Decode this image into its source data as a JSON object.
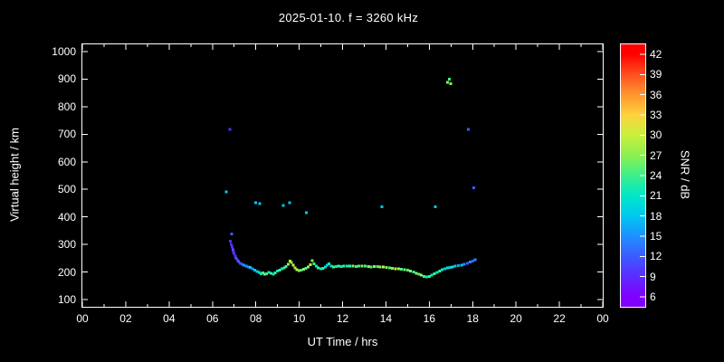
{
  "chart_data": {
    "type": "scatter",
    "title": "2025-01-10. f = 3260 kHz",
    "xlabel": "UT Time / hrs",
    "ylabel": "Virtual height / km",
    "background_color": "#000000",
    "axis_color": "#ffffff",
    "xlim": [
      0,
      24
    ],
    "ylim": [
      100,
      1000
    ],
    "grid": false,
    "x_ticks": [
      {
        "v": 0,
        "label": "00"
      },
      {
        "v": 2,
        "label": "02"
      },
      {
        "v": 4,
        "label": "04"
      },
      {
        "v": 6,
        "label": "06"
      },
      {
        "v": 8,
        "label": "08"
      },
      {
        "v": 10,
        "label": "10"
      },
      {
        "v": 12,
        "label": "12"
      },
      {
        "v": 14,
        "label": "14"
      },
      {
        "v": 16,
        "label": "16"
      },
      {
        "v": 18,
        "label": "18"
      },
      {
        "v": 20,
        "label": "20"
      },
      {
        "v": 22,
        "label": "22"
      },
      {
        "v": 24,
        "label": "00"
      }
    ],
    "x_minor": [
      1,
      3,
      5,
      7,
      9,
      11,
      13,
      15,
      17,
      19,
      21,
      23
    ],
    "y_ticks": [
      {
        "v": 1000,
        "label": "1000"
      },
      {
        "v": 900,
        "label": "900"
      },
      {
        "v": 800,
        "label": "800"
      },
      {
        "v": 700,
        "label": "700"
      },
      {
        "v": 600,
        "label": "600"
      },
      {
        "v": 500,
        "label": "500"
      },
      {
        "v": 400,
        "label": "400"
      },
      {
        "v": 300,
        "label": "300"
      },
      {
        "v": 200,
        "label": "200"
      },
      {
        "v": 100,
        "label": "100"
      }
    ],
    "colorbar": {
      "label": "SNR / dB",
      "min": 6,
      "max": 42,
      "ticks": [
        {
          "v": 42,
          "label": "42"
        },
        {
          "v": 39,
          "label": "39"
        },
        {
          "v": 36,
          "label": "36"
        },
        {
          "v": 33,
          "label": "33"
        },
        {
          "v": 30,
          "label": "30"
        },
        {
          "v": 27,
          "label": "27"
        },
        {
          "v": 24,
          "label": "24"
        },
        {
          "v": 21,
          "label": "21"
        },
        {
          "v": 18,
          "label": "18"
        },
        {
          "v": 15,
          "label": "15"
        },
        {
          "v": 12,
          "label": "12"
        },
        {
          "v": 9,
          "label": "9"
        },
        {
          "v": 6,
          "label": "6"
        }
      ],
      "colors": [
        "#8000ff",
        "#5b2bff",
        "#3b5bff",
        "#1e90ff",
        "#00c8f0",
        "#00e6c8",
        "#3cf08c",
        "#8cf050",
        "#c8f03c",
        "#ffd23c",
        "#ff962e",
        "#ff501e",
        "#ff0000"
      ]
    },
    "points_format": "[ut_hour, virtual_height_km, snr_db]",
    "points": [
      [
        6.63,
        491,
        18
      ],
      [
        6.8,
        718,
        9
      ],
      [
        6.88,
        338,
        12
      ],
      [
        6.82,
        312,
        9
      ],
      [
        6.86,
        300,
        9
      ],
      [
        6.9,
        290,
        9
      ],
      [
        6.94,
        281,
        12
      ],
      [
        6.98,
        273,
        9
      ],
      [
        7.0,
        268,
        9
      ],
      [
        7.05,
        258,
        9
      ],
      [
        7.1,
        250,
        12
      ],
      [
        7.15,
        243,
        9
      ],
      [
        7.2,
        238,
        12
      ],
      [
        7.28,
        232,
        12
      ],
      [
        7.36,
        228,
        12
      ],
      [
        7.45,
        225,
        15
      ],
      [
        7.55,
        222,
        15
      ],
      [
        7.65,
        219,
        15
      ],
      [
        7.75,
        216,
        18
      ],
      [
        7.85,
        212,
        15
      ],
      [
        7.95,
        207,
        18
      ],
      [
        8.0,
        452,
        18
      ],
      [
        8.18,
        448,
        18
      ],
      [
        8.05,
        202,
        18
      ],
      [
        8.15,
        198,
        21
      ],
      [
        8.25,
        194,
        21
      ],
      [
        8.32,
        197,
        24
      ],
      [
        8.4,
        192,
        27
      ],
      [
        8.5,
        194,
        24
      ],
      [
        8.6,
        199,
        21
      ],
      [
        8.7,
        196,
        24
      ],
      [
        8.8,
        192,
        21
      ],
      [
        8.9,
        197,
        24
      ],
      [
        9.0,
        203,
        21
      ],
      [
        9.1,
        207,
        24
      ],
      [
        9.2,
        211,
        21
      ],
      [
        9.27,
        442,
        18
      ],
      [
        9.3,
        215,
        24
      ],
      [
        9.4,
        220,
        24
      ],
      [
        9.5,
        228,
        27
      ],
      [
        9.55,
        452,
        18
      ],
      [
        9.58,
        240,
        30
      ],
      [
        9.64,
        234,
        27
      ],
      [
        9.72,
        224,
        30
      ],
      [
        9.8,
        215,
        27
      ],
      [
        9.9,
        209,
        30
      ],
      [
        10.0,
        205,
        27
      ],
      [
        10.1,
        206,
        24
      ],
      [
        10.2,
        210,
        27
      ],
      [
        10.3,
        214,
        24
      ],
      [
        10.32,
        415,
        18
      ],
      [
        10.42,
        219,
        27
      ],
      [
        10.52,
        226,
        30
      ],
      [
        10.6,
        241,
        27
      ],
      [
        10.68,
        230,
        24
      ],
      [
        10.78,
        221,
        21
      ],
      [
        10.88,
        215,
        24
      ],
      [
        11.0,
        211,
        21
      ],
      [
        11.1,
        214,
        24
      ],
      [
        11.2,
        218,
        21
      ],
      [
        11.3,
        224,
        18
      ],
      [
        11.38,
        229,
        21
      ],
      [
        11.48,
        221,
        21
      ],
      [
        11.58,
        218,
        24
      ],
      [
        11.7,
        220,
        21
      ],
      [
        11.82,
        221,
        24
      ],
      [
        11.94,
        220,
        21
      ],
      [
        12.06,
        222,
        24
      ],
      [
        12.2,
        221,
        21
      ],
      [
        12.34,
        222,
        24
      ],
      [
        12.48,
        221,
        27
      ],
      [
        12.62,
        220,
        24
      ],
      [
        12.76,
        221,
        24
      ],
      [
        12.9,
        222,
        27
      ],
      [
        13.04,
        221,
        24
      ],
      [
        13.18,
        220,
        27
      ],
      [
        13.32,
        219,
        24
      ],
      [
        13.46,
        220,
        27
      ],
      [
        13.6,
        220,
        24
      ],
      [
        13.74,
        219,
        27
      ],
      [
        13.82,
        436,
        18
      ],
      [
        13.88,
        218,
        30
      ],
      [
        14.02,
        217,
        27
      ],
      [
        14.16,
        215,
        24
      ],
      [
        14.3,
        213,
        27
      ],
      [
        14.44,
        212,
        30
      ],
      [
        14.58,
        211,
        27
      ],
      [
        14.72,
        210,
        24
      ],
      [
        14.86,
        209,
        27
      ],
      [
        15.0,
        207,
        24
      ],
      [
        15.14,
        204,
        27
      ],
      [
        15.28,
        200,
        24
      ],
      [
        15.4,
        196,
        27
      ],
      [
        15.52,
        192,
        24
      ],
      [
        15.64,
        188,
        27
      ],
      [
        15.76,
        184,
        24
      ],
      [
        15.88,
        182,
        21
      ],
      [
        16.0,
        184,
        24
      ],
      [
        16.12,
        188,
        21
      ],
      [
        16.24,
        193,
        24
      ],
      [
        16.28,
        436,
        18
      ],
      [
        16.36,
        199,
        21
      ],
      [
        16.48,
        204,
        24
      ],
      [
        16.6,
        208,
        21
      ],
      [
        16.72,
        212,
        18
      ],
      [
        16.84,
        215,
        21
      ],
      [
        16.85,
        888,
        27
      ],
      [
        16.92,
        900,
        24
      ],
      [
        16.96,
        217,
        18
      ],
      [
        16.99,
        884,
        27
      ],
      [
        17.08,
        219,
        21
      ],
      [
        17.2,
        221,
        18
      ],
      [
        17.34,
        223,
        15
      ],
      [
        17.48,
        225,
        18
      ],
      [
        17.62,
        228,
        15
      ],
      [
        17.76,
        232,
        12
      ],
      [
        17.8,
        718,
        12
      ],
      [
        17.88,
        236,
        15
      ],
      [
        18.0,
        240,
        12
      ],
      [
        18.05,
        505,
        12
      ],
      [
        18.12,
        244,
        15
      ]
    ]
  }
}
